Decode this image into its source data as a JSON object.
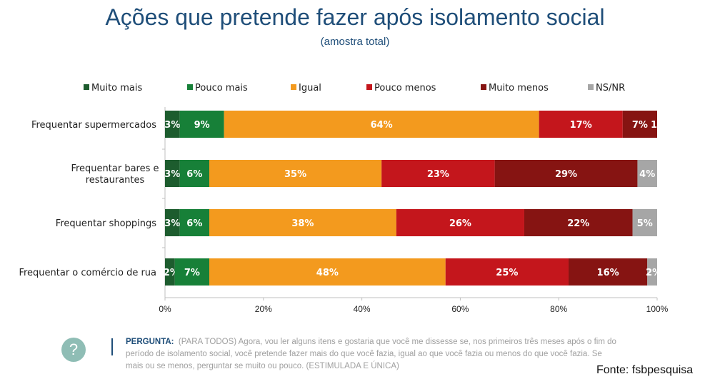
{
  "header": {
    "title": "Ações que pretende fazer após isolamento social",
    "subtitle": "(amostra total)"
  },
  "chart_data": {
    "type": "bar",
    "orientation": "horizontal",
    "stacked": true,
    "title": "Ações que pretende fazer após isolamento social",
    "subtitle": "(amostra total)",
    "xlabel": "",
    "ylabel": "",
    "xlim": [
      0,
      100
    ],
    "x_ticks": [
      "0%",
      "20%",
      "40%",
      "60%",
      "80%",
      "100%"
    ],
    "legend_position": "top",
    "categories": [
      "Frequentar supermercados",
      "Frequentar bares e restaurantes",
      "Frequentar shoppings",
      "Frequentar o comércio de rua"
    ],
    "category_lines": [
      [
        "Frequentar supermercados"
      ],
      [
        "Frequentar bares e",
        "restaurantes"
      ],
      [
        "Frequentar shoppings"
      ],
      [
        "Frequentar o comércio de rua"
      ]
    ],
    "series": [
      {
        "name": "Muito mais",
        "color": "#1d5c2e",
        "values": [
          3,
          3,
          3,
          2
        ]
      },
      {
        "name": "Pouco mais",
        "color": "#178038",
        "values": [
          9,
          6,
          6,
          7
        ]
      },
      {
        "name": "Igual",
        "color": "#f39a1e",
        "values": [
          64,
          35,
          38,
          48
        ]
      },
      {
        "name": "Pouco menos",
        "color": "#c4161c",
        "values": [
          17,
          23,
          26,
          25
        ]
      },
      {
        "name": "Muito menos",
        "color": "#861412",
        "values": [
          7,
          29,
          22,
          16
        ]
      },
      {
        "name": "NS/NR",
        "color": "#a6a6a6",
        "values": [
          1,
          4,
          5,
          2
        ]
      }
    ],
    "value_suffix": "%"
  },
  "footer": {
    "question_label": "PERGUNTA:",
    "question_text": "(PARA TODOS) Agora, vou ler alguns itens e gostaria que você me dissesse se, nos primeiros três meses após o fim do período de isolamento social, você pretende fazer mais do que você fazia, igual ao que você fazia ou menos do que você fazia. Se mais ou se menos, perguntar se muito ou pouco. (ESTIMULADA E ÚNICA)",
    "question_icon": "question-circle-icon",
    "question_icon_glyph": "?",
    "source": "Fonte: fsbpesquisa"
  }
}
